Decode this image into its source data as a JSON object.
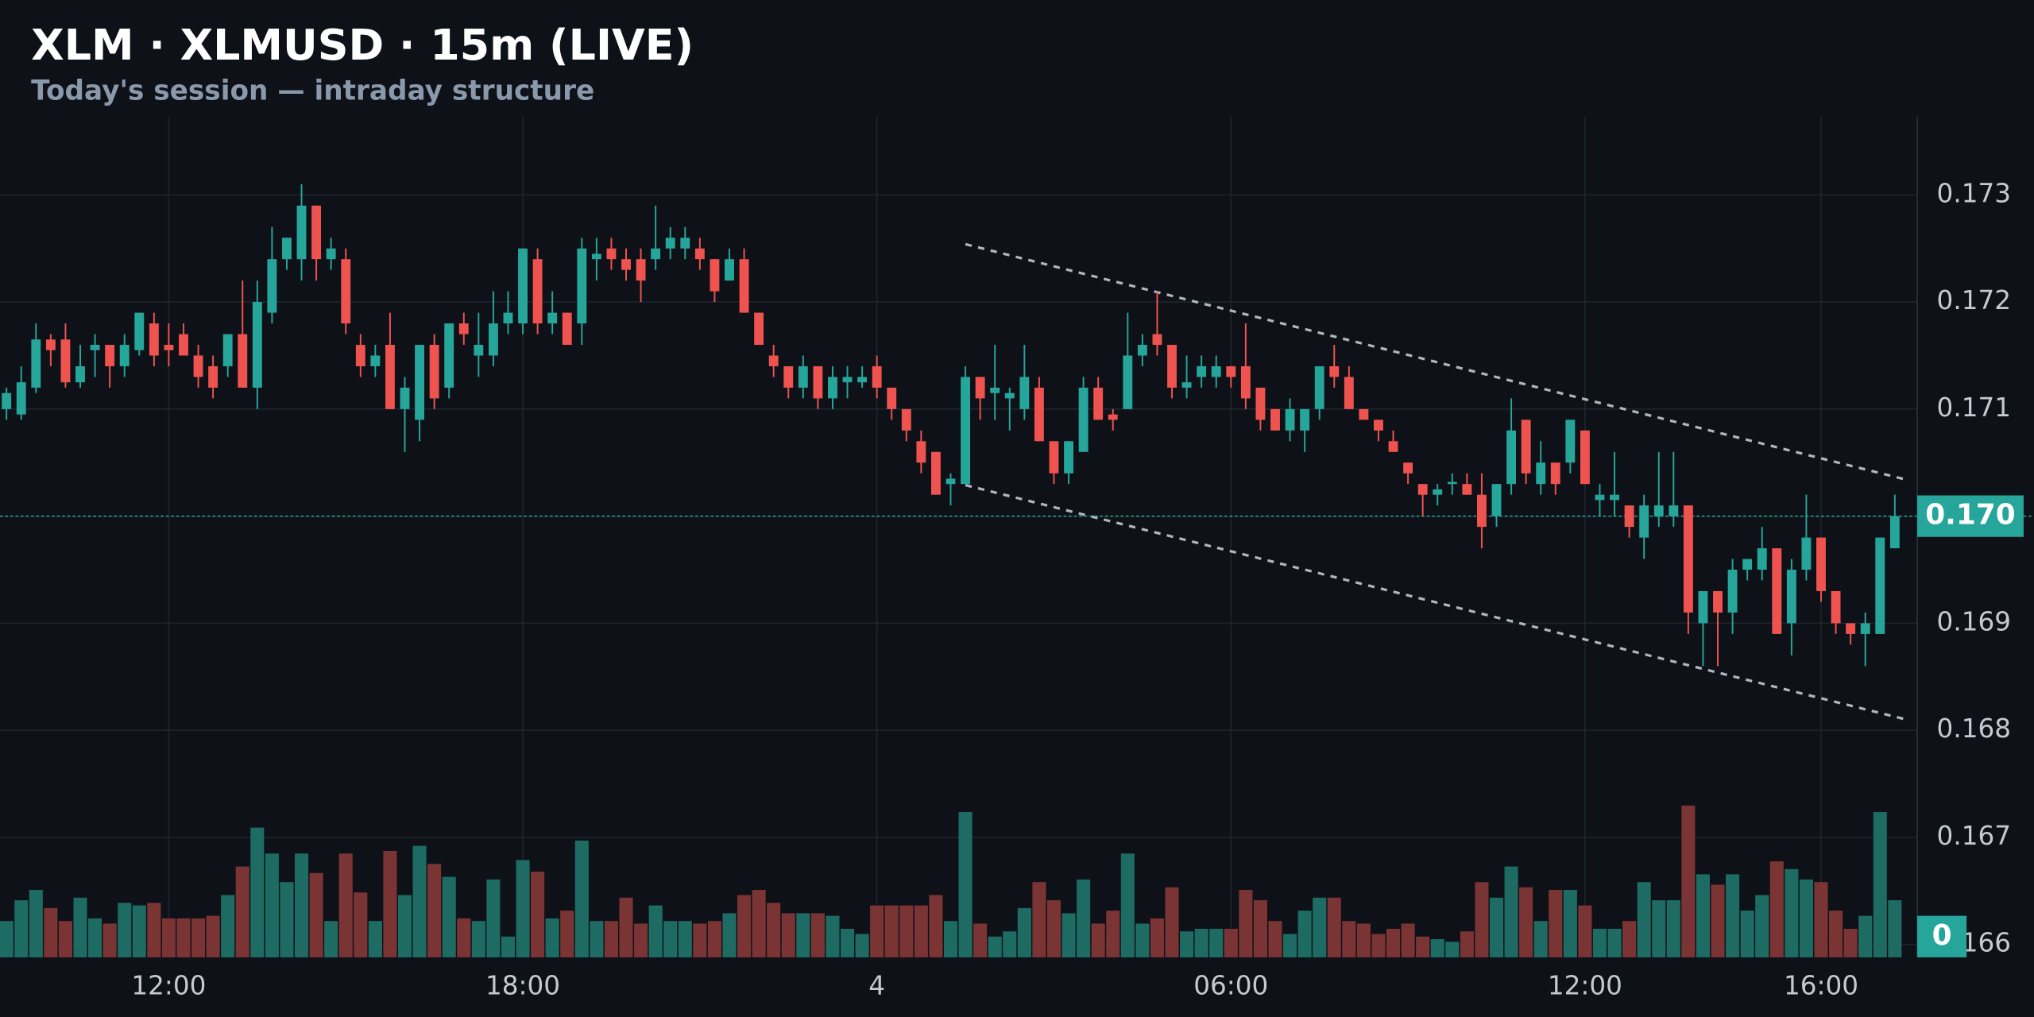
{
  "chart_data": {
    "type": "candlestick",
    "title": "XLM · XLMUSD · 15m (LIVE)",
    "subtitle": "Today's session — intraday structure",
    "up_color": "#26a69a",
    "down_color": "#ef5350",
    "volume_up_color": "#1e6b64",
    "volume_down_color": "#7a3434",
    "grid": true,
    "xlim": [
      9.14,
      41.63
    ],
    "ylim": [
      0.16588,
      0.17373
    ],
    "volume_ylim": [
      0,
      120
    ],
    "xticks": [
      {
        "value": 12,
        "label": "12:00"
      },
      {
        "value": 18,
        "label": "18:00"
      },
      {
        "value": 24,
        "label": "4"
      },
      {
        "value": 30,
        "label": "06:00"
      },
      {
        "value": 36,
        "label": "12:00"
      },
      {
        "value": 40,
        "label": "16:00"
      }
    ],
    "yticks": [
      0.173,
      0.172,
      0.171,
      {
        "value": 0.17,
        "label": "0.170"
      },
      0.169,
      0.168,
      0.167,
      0.166
    ],
    "last_price": {
      "value": 0.17,
      "label": "0.170"
    },
    "volume_badge": 0,
    "trendlines": [
      {
        "x": [
          25.5,
          41.45
        ],
        "y": [
          0.17254,
          0.17034
        ]
      },
      {
        "x": [
          25.5,
          41.45
        ],
        "y": [
          0.17029,
          0.1681
        ]
      }
    ],
    "x": [
      9.25,
      9.5,
      9.75,
      10,
      10.25,
      10.5,
      10.75,
      11,
      11.25,
      11.5,
      11.75,
      12,
      12.25,
      12.5,
      12.75,
      13,
      13.25,
      13.5,
      13.75,
      14,
      14.25,
      14.5,
      14.75,
      15,
      15.25,
      15.5,
      15.75,
      16,
      16.25,
      16.5,
      16.75,
      17,
      17.25,
      17.5,
      17.75,
      18,
      18.25,
      18.5,
      18.75,
      19,
      19.25,
      19.5,
      19.75,
      20,
      20.25,
      20.5,
      20.75,
      21,
      21.25,
      21.5,
      21.75,
      22,
      22.25,
      22.5,
      22.75,
      23,
      23.25,
      23.5,
      23.75,
      24,
      24.25,
      24.5,
      24.75,
      25,
      25.25,
      25.5,
      25.75,
      26,
      26.25,
      26.5,
      26.75,
      27,
      27.25,
      27.5,
      27.75,
      28,
      28.25,
      28.5,
      28.75,
      29,
      29.25,
      29.5,
      29.75,
      30,
      30.25,
      30.5,
      30.75,
      31,
      31.25,
      31.5,
      31.75,
      32,
      32.25,
      32.5,
      32.75,
      33,
      33.25,
      33.5,
      33.75,
      34,
      34.25,
      34.5,
      34.75,
      35,
      35.25,
      35.5,
      35.75,
      36,
      36.25,
      36.5,
      36.75,
      37,
      37.25,
      37.5,
      37.75,
      38,
      38.25,
      38.5,
      38.75,
      39,
      39.25,
      39.5,
      39.75,
      40,
      40.25,
      40.5,
      40.75,
      41,
      41.25
    ],
    "open": [
      0.171,
      0.17095,
      0.1712,
      0.17165,
      0.17165,
      0.17125,
      0.17155,
      0.1716,
      0.1714,
      0.17155,
      0.1718,
      0.1716,
      0.1717,
      0.1715,
      0.1714,
      0.1714,
      0.1717,
      0.1712,
      0.1719,
      0.1724,
      0.1724,
      0.1729,
      0.1724,
      0.1724,
      0.1716,
      0.1714,
      0.1716,
      0.171,
      0.1709,
      0.1716,
      0.1712,
      0.1718,
      0.1715,
      0.1715,
      0.1718,
      0.1718,
      0.1724,
      0.1718,
      0.1719,
      0.1718,
      0.1724,
      0.1725,
      0.1724,
      0.1724,
      0.1724,
      0.1725,
      0.1725,
      0.1725,
      0.1724,
      0.1722,
      0.1724,
      0.1719,
      0.1715,
      0.1714,
      0.1712,
      0.1714,
      0.1711,
      0.17125,
      0.17125,
      0.1714,
      0.1712,
      0.171,
      0.1707,
      0.1706,
      0.1703,
      0.1703,
      0.1713,
      0.17115,
      0.1711,
      0.171,
      0.1712,
      0.1707,
      0.1704,
      0.1706,
      0.1712,
      0.17095,
      0.171,
      0.1715,
      0.1717,
      0.1716,
      0.1712,
      0.1713,
      0.1713,
      0.1714,
      0.1714,
      0.1712,
      0.171,
      0.1708,
      0.1708,
      0.171,
      0.1714,
      0.1713,
      0.171,
      0.1709,
      0.1707,
      0.1705,
      0.1703,
      0.1702,
      0.1703,
      0.1703,
      0.1702,
      0.17,
      0.1703,
      0.1709,
      0.1703,
      0.1705,
      0.1705,
      0.1708,
      0.17015,
      0.17015,
      0.1701,
      0.1698,
      0.17,
      0.17,
      0.1701,
      0.169,
      0.1693,
      0.1691,
      0.1695,
      0.1695,
      0.1697,
      0.169,
      0.1695,
      0.1698,
      0.1693,
      0.169,
      0.1689,
      0.1689,
      0.1697
    ],
    "high": [
      0.1712,
      0.1714,
      0.1718,
      0.1717,
      0.1718,
      0.1716,
      0.1717,
      0.1716,
      0.1717,
      0.1719,
      0.1719,
      0.1718,
      0.1718,
      0.1716,
      0.1715,
      0.1717,
      0.1722,
      0.1722,
      0.1727,
      0.1726,
      0.1731,
      0.1729,
      0.1726,
      0.1725,
      0.1717,
      0.1716,
      0.1719,
      0.1713,
      0.1716,
      0.1717,
      0.1718,
      0.1719,
      0.1719,
      0.1721,
      0.1721,
      0.1725,
      0.1725,
      0.1721,
      0.1719,
      0.1726,
      0.1726,
      0.1726,
      0.1725,
      0.1725,
      0.1729,
      0.1727,
      0.1727,
      0.1726,
      0.1724,
      0.1725,
      0.1725,
      0.1719,
      0.1716,
      0.1714,
      0.1715,
      0.1714,
      0.1714,
      0.1714,
      0.1714,
      0.1715,
      0.1712,
      0.171,
      0.1708,
      0.1706,
      0.1704,
      0.1714,
      0.1713,
      0.1716,
      0.1712,
      0.1716,
      0.1713,
      0.1707,
      0.1707,
      0.1713,
      0.1713,
      0.171,
      0.1719,
      0.1717,
      0.1721,
      0.1716,
      0.1715,
      0.1715,
      0.1715,
      0.1714,
      0.1718,
      0.1712,
      0.171,
      0.1711,
      0.171,
      0.1714,
      0.1716,
      0.1714,
      0.171,
      0.1709,
      0.1708,
      0.1705,
      0.1703,
      0.1703,
      0.1704,
      0.1704,
      0.1704,
      0.1703,
      0.1711,
      0.1709,
      0.1707,
      0.1705,
      0.1709,
      0.1708,
      0.1703,
      0.1706,
      0.1701,
      0.1702,
      0.1706,
      0.1706,
      0.1701,
      0.1693,
      0.1693,
      0.1696,
      0.1696,
      0.1699,
      0.1697,
      0.1696,
      0.1702,
      0.1698,
      0.1693,
      0.169,
      0.1691,
      0.1698,
      0.1702
    ],
    "low": [
      0.1709,
      0.1709,
      0.17115,
      0.1714,
      0.1712,
      0.1712,
      0.1713,
      0.1712,
      0.1713,
      0.1715,
      0.1714,
      0.1714,
      0.1715,
      0.1712,
      0.1711,
      0.1713,
      0.1712,
      0.171,
      0.1718,
      0.1723,
      0.1722,
      0.1722,
      0.1723,
      0.1717,
      0.1713,
      0.1713,
      0.171,
      0.1706,
      0.1707,
      0.171,
      0.1711,
      0.1716,
      0.1713,
      0.1714,
      0.1717,
      0.1717,
      0.1717,
      0.1717,
      0.1716,
      0.1716,
      0.1722,
      0.1723,
      0.1722,
      0.172,
      0.1723,
      0.1724,
      0.1724,
      0.1723,
      0.172,
      0.1722,
      0.1719,
      0.1716,
      0.1713,
      0.1711,
      0.1711,
      0.171,
      0.171,
      0.1711,
      0.1712,
      0.1711,
      0.1709,
      0.1707,
      0.1704,
      0.1702,
      0.1701,
      0.1703,
      0.1709,
      0.1709,
      0.1708,
      0.1709,
      0.1707,
      0.1703,
      0.1703,
      0.1706,
      0.1709,
      0.1708,
      0.171,
      0.1714,
      0.1715,
      0.1711,
      0.1711,
      0.1712,
      0.1712,
      0.1712,
      0.171,
      0.1708,
      0.1708,
      0.1707,
      0.1706,
      0.1709,
      0.1712,
      0.171,
      0.1709,
      0.1707,
      0.1706,
      0.1703,
      0.17,
      0.1701,
      0.1702,
      0.1702,
      0.1697,
      0.1699,
      0.1702,
      0.1703,
      0.1702,
      0.1702,
      0.1704,
      0.1703,
      0.17,
      0.17,
      0.1698,
      0.1696,
      0.1699,
      0.1699,
      0.1689,
      0.1686,
      0.1686,
      0.1689,
      0.1694,
      0.1694,
      0.1689,
      0.1687,
      0.1694,
      0.1692,
      0.1689,
      0.1688,
      0.1686,
      0.1689,
      0.1697
    ],
    "close": [
      0.17115,
      0.17125,
      0.17165,
      0.17155,
      0.17125,
      0.1714,
      0.1716,
      0.1714,
      0.1716,
      0.1719,
      0.1715,
      0.17155,
      0.1715,
      0.1713,
      0.1712,
      0.1717,
      0.1712,
      0.172,
      0.1724,
      0.1726,
      0.1729,
      0.1724,
      0.1725,
      0.1718,
      0.1714,
      0.1715,
      0.171,
      0.1712,
      0.1716,
      0.1711,
      0.1718,
      0.1717,
      0.1716,
      0.1718,
      0.1719,
      0.1725,
      0.1718,
      0.1719,
      0.1716,
      0.1725,
      0.17245,
      0.1724,
      0.1723,
      0.1722,
      0.1725,
      0.1726,
      0.1726,
      0.1724,
      0.1721,
      0.1724,
      0.1719,
      0.1716,
      0.1714,
      0.1712,
      0.1714,
      0.1711,
      0.1713,
      0.1713,
      0.1713,
      0.1712,
      0.171,
      0.1708,
      0.1705,
      0.1702,
      0.17035,
      0.1713,
      0.1711,
      0.1712,
      0.17115,
      0.1713,
      0.1707,
      0.1704,
      0.1707,
      0.1712,
      0.1709,
      0.1709,
      0.1715,
      0.1716,
      0.1716,
      0.1712,
      0.17125,
      0.1714,
      0.1714,
      0.1713,
      0.1711,
      0.1709,
      0.1708,
      0.171,
      0.171,
      0.1714,
      0.1713,
      0.171,
      0.1709,
      0.1708,
      0.1706,
      0.1704,
      0.1702,
      0.17025,
      0.17032,
      0.1702,
      0.1699,
      0.1703,
      0.1708,
      0.1704,
      0.1705,
      0.1703,
      0.1709,
      0.1703,
      0.1702,
      0.1702,
      0.1699,
      0.1701,
      0.1701,
      0.1701,
      0.1691,
      0.1693,
      0.1691,
      0.1695,
      0.1696,
      0.1697,
      0.1689,
      0.1695,
      0.1698,
      0.1693,
      0.169,
      0.1689,
      0.169,
      0.1698,
      0.17
    ],
    "volume": [
      28,
      44,
      52,
      38,
      28,
      46,
      30,
      26,
      42,
      40,
      42,
      30,
      30,
      30,
      32,
      48,
      70,
      100,
      80,
      58,
      80,
      65,
      28,
      80,
      50,
      28,
      82,
      48,
      86,
      72,
      62,
      30,
      28,
      60,
      16,
      75,
      66,
      30,
      36,
      90,
      28,
      28,
      46,
      26,
      40,
      28,
      28,
      26,
      28,
      34,
      48,
      52,
      42,
      34,
      34,
      34,
      32,
      22,
      18,
      40,
      40,
      40,
      40,
      48,
      28,
      112,
      26,
      16,
      20,
      38,
      58,
      44,
      34,
      60,
      26,
      36,
      80,
      26,
      30,
      54,
      20,
      22,
      22,
      22,
      52,
      44,
      28,
      18,
      36,
      46,
      46,
      28,
      26,
      18,
      22,
      26,
      16,
      14,
      12,
      20,
      58,
      46,
      70,
      54,
      28,
      52,
      52,
      40,
      22,
      22,
      28,
      58,
      44,
      44,
      117,
      64,
      56,
      64,
      36,
      48,
      74,
      68,
      60,
      58,
      36,
      22,
      32,
      112,
      44
    ]
  }
}
